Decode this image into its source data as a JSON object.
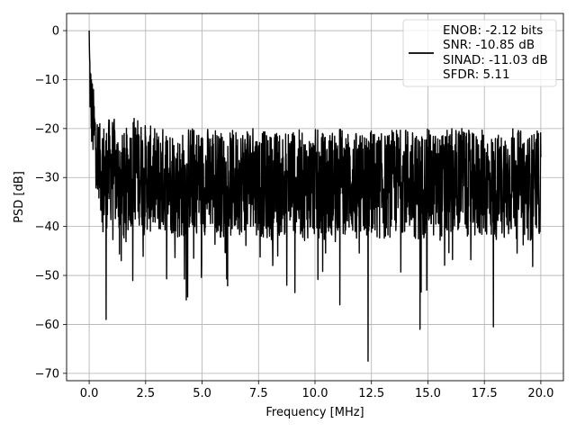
{
  "chart_data": {
    "type": "line",
    "xlabel": "Frequency [MHz]",
    "ylabel": "PSD [dB]",
    "xlim": [
      -1.0,
      21.0
    ],
    "ylim": [
      -71.5,
      3.5
    ],
    "xticks": [
      0.0,
      2.5,
      5.0,
      7.5,
      10.0,
      12.5,
      15.0,
      17.5,
      20.0
    ],
    "xtick_labels": [
      "0.0",
      "2.5",
      "5.0",
      "7.5",
      "10.0",
      "12.5",
      "15.0",
      "17.5",
      "20.0"
    ],
    "yticks": [
      0,
      -10,
      -20,
      -30,
      -40,
      -50,
      -60,
      -70
    ],
    "ytick_labels": [
      "0",
      "−10",
      "−20",
      "−30",
      "−40",
      "−50",
      "−60",
      "−70"
    ],
    "grid": true,
    "legend_position": "top-right",
    "series": [
      {
        "name": "ENOB: -2.12 bits\nSNR: -10.85 dB\nSINAD: -11.03 dB\nSFDR: 5.11",
        "legend_lines": [
          "ENOB: -2.12 bits",
          "SNR: -10.85 dB",
          "SINAD: -11.03 dB",
          "SFDR: 5.11"
        ],
        "color": "#000000",
        "x": [
          0.0,
          0.02,
          0.05,
          0.1,
          0.2,
          0.4,
          0.7,
          1.0,
          1.5,
          2.0,
          2.5,
          3.0,
          3.5,
          4.0,
          4.5,
          5.0,
          5.5,
          6.0,
          6.5,
          7.0,
          7.5,
          8.0,
          8.5,
          9.0,
          9.5,
          10.0,
          10.5,
          11.0,
          11.5,
          12.0,
          12.5,
          13.0,
          13.5,
          14.0,
          14.5,
          15.0,
          15.5,
          16.0,
          16.5,
          17.0,
          17.5,
          18.0,
          18.5,
          19.0,
          19.5,
          20.0
        ],
        "y": [
          0,
          -7,
          -12,
          -16,
          -20,
          -26,
          -30,
          -28,
          -32,
          -28,
          -30,
          -31,
          -30,
          -32,
          -30,
          -31,
          -30,
          -32,
          -31,
          -30,
          -31,
          -32,
          -31,
          -30,
          -32,
          -31,
          -32,
          -30,
          -31,
          -32,
          -31,
          -32,
          -31,
          -30,
          -32,
          -31,
          -32,
          -31,
          -30,
          -32,
          -31,
          -32,
          -31,
          -30,
          -32,
          -31
        ],
        "noise_upper_envelope_db": -20,
        "noise_lower_envelope_db": -40,
        "notable_dips": [
          {
            "x": 0.75,
            "y": -59
          },
          {
            "x": 4.3,
            "y": -55
          },
          {
            "x": 8.75,
            "y": -52
          },
          {
            "x": 11.1,
            "y": -56
          },
          {
            "x": 12.35,
            "y": -67.5
          },
          {
            "x": 14.65,
            "y": -61
          },
          {
            "x": 17.9,
            "y": -60.5
          }
        ]
      }
    ]
  }
}
